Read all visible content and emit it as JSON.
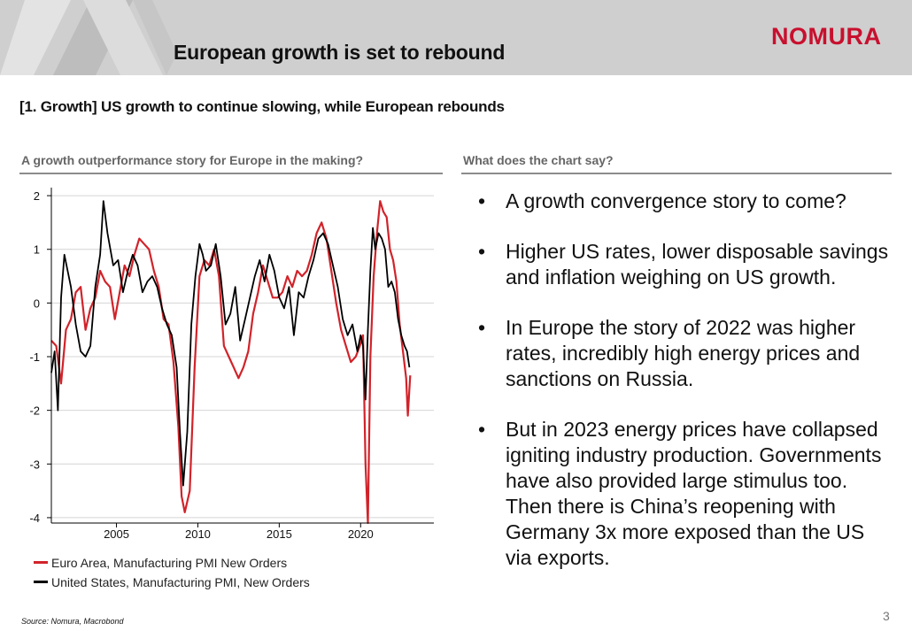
{
  "header": {
    "title": "European growth is set to rebound",
    "logo": "NOMURA"
  },
  "subtitle": "[1. Growth] US growth to continue slowing, while European rebounds",
  "left_heading": "A growth outperformance story for Europe in the making?",
  "right_heading": "What does the chart say?",
  "bullets": [
    "A growth convergence story to come?",
    "Higher US rates, lower disposable savings and inflation weighing on US growth.",
    "In Europe the story of 2022 was higher rates, incredibly high energy prices and sanctions on Russia.",
    "But in 2023 energy prices have collapsed igniting industry production. Governments have also provided large stimulus too. Then there is China’s reopening with Germany 3x more exposed than the US via exports."
  ],
  "source": "Source: Nomura, Macrobond",
  "page_number": "3",
  "colors": {
    "eu": "#d1232a",
    "us": "#000000",
    "accent": "#c8102e"
  },
  "chart_data": {
    "type": "line",
    "title": "A growth outperformance story for Europe in the making?",
    "xlabel": "",
    "ylabel": "",
    "xlim": [
      2001.0,
      2024.5
    ],
    "ylim": [
      -4.1,
      2.15
    ],
    "x_ticks": [
      2005,
      2010,
      2015,
      2020
    ],
    "x_tick_labels": [
      "2005",
      "2010",
      "2015",
      "2020"
    ],
    "y_ticks": [
      2,
      1,
      0,
      -1,
      -2,
      -3,
      -4
    ],
    "y_tick_labels": [
      "2",
      "1",
      "0",
      "-1",
      "-2",
      "-3",
      "-4"
    ],
    "grid": "horizontal",
    "legend_position": "bottom-left",
    "series": [
      {
        "name": "Euro Area, Manufacturing PMI New Orders",
        "color": "#d1232a",
        "x": [
          2001.0,
          2001.3,
          2001.6,
          2001.9,
          2002.2,
          2002.5,
          2002.8,
          2003.1,
          2003.4,
          2003.7,
          2004.0,
          2004.3,
          2004.6,
          2004.9,
          2005.2,
          2005.5,
          2005.8,
          2006.1,
          2006.4,
          2006.7,
          2007.0,
          2007.3,
          2007.6,
          2007.9,
          2008.2,
          2008.5,
          2008.8,
          2009.0,
          2009.2,
          2009.5,
          2009.8,
          2010.1,
          2010.4,
          2010.7,
          2011.0,
          2011.3,
          2011.6,
          2011.9,
          2012.2,
          2012.5,
          2012.8,
          2013.1,
          2013.4,
          2013.7,
          2014.0,
          2014.3,
          2014.6,
          2014.9,
          2015.2,
          2015.5,
          2015.8,
          2016.1,
          2016.4,
          2016.7,
          2017.0,
          2017.3,
          2017.6,
          2017.9,
          2018.2,
          2018.5,
          2018.8,
          2019.1,
          2019.4,
          2019.7,
          2019.95,
          2020.15,
          2020.3,
          2020.45,
          2020.6,
          2020.8,
          2021.0,
          2021.2,
          2021.4,
          2021.6,
          2021.8,
          2022.0,
          2022.2,
          2022.4,
          2022.6,
          2022.8,
          2022.9,
          2023.05
        ],
        "values": [
          -0.7,
          -0.8,
          -1.5,
          -0.5,
          -0.3,
          0.2,
          0.3,
          -0.5,
          -0.1,
          0.1,
          0.6,
          0.4,
          0.3,
          -0.3,
          0.2,
          0.7,
          0.5,
          0.9,
          1.2,
          1.1,
          1.0,
          0.6,
          0.3,
          -0.3,
          -0.4,
          -1.1,
          -2.3,
          -3.6,
          -3.9,
          -3.5,
          -1.2,
          0.5,
          0.8,
          0.7,
          1.0,
          0.5,
          -0.8,
          -1.0,
          -1.2,
          -1.4,
          -1.2,
          -0.9,
          -0.2,
          0.2,
          0.7,
          0.4,
          0.1,
          0.1,
          0.2,
          0.5,
          0.3,
          0.6,
          0.5,
          0.6,
          0.9,
          1.3,
          1.5,
          1.2,
          0.6,
          0.0,
          -0.5,
          -0.8,
          -1.1,
          -1.0,
          -0.8,
          -0.6,
          -3.0,
          -4.1,
          -1.0,
          0.5,
          1.3,
          1.9,
          1.7,
          1.6,
          1.0,
          0.8,
          0.4,
          -0.4,
          -0.9,
          -1.4,
          -2.1,
          -1.35
        ]
      },
      {
        "name": "United States, Manufacturing PMI, New Orders",
        "color": "#000000",
        "x": [
          2001.0,
          2001.2,
          2001.4,
          2001.6,
          2001.8,
          2002.0,
          2002.2,
          2002.5,
          2002.8,
          2003.1,
          2003.4,
          2003.7,
          2004.0,
          2004.2,
          2004.45,
          2004.8,
          2005.1,
          2005.4,
          2005.7,
          2006.0,
          2006.3,
          2006.6,
          2006.9,
          2007.2,
          2007.5,
          2007.8,
          2008.1,
          2008.4,
          2008.7,
          2008.9,
          2009.1,
          2009.35,
          2009.6,
          2009.85,
          2010.1,
          2010.3,
          2010.5,
          2010.8,
          2011.1,
          2011.4,
          2011.7,
          2012.0,
          2012.3,
          2012.6,
          2012.9,
          2013.2,
          2013.5,
          2013.8,
          2014.1,
          2014.4,
          2014.7,
          2015.0,
          2015.3,
          2015.6,
          2015.9,
          2016.2,
          2016.5,
          2016.8,
          2017.1,
          2017.4,
          2017.7,
          2018.0,
          2018.3,
          2018.6,
          2018.9,
          2019.2,
          2019.5,
          2019.8,
          2020.0,
          2020.15,
          2020.3,
          2020.45,
          2020.6,
          2020.75,
          2020.9,
          2021.1,
          2021.3,
          2021.5,
          2021.7,
          2021.9,
          2022.1,
          2022.3,
          2022.5,
          2022.7,
          2022.85,
          2023.0
        ],
        "values": [
          -1.3,
          -0.9,
          -2.0,
          0.1,
          0.9,
          0.6,
          0.3,
          -0.4,
          -0.9,
          -1.0,
          -0.8,
          0.3,
          0.9,
          1.9,
          1.3,
          0.7,
          0.8,
          0.2,
          0.6,
          0.9,
          0.7,
          0.2,
          0.4,
          0.5,
          0.3,
          -0.1,
          -0.4,
          -0.6,
          -1.2,
          -2.4,
          -3.4,
          -2.4,
          -0.4,
          0.5,
          1.1,
          0.9,
          0.6,
          0.7,
          1.1,
          0.5,
          -0.4,
          -0.2,
          0.3,
          -0.7,
          -0.3,
          0.1,
          0.5,
          0.8,
          0.4,
          0.9,
          0.6,
          0.1,
          -0.1,
          0.3,
          -0.6,
          0.2,
          0.1,
          0.5,
          0.8,
          1.2,
          1.3,
          1.1,
          0.7,
          0.3,
          -0.3,
          -0.6,
          -0.4,
          -0.9,
          -0.6,
          -0.8,
          -1.8,
          -0.5,
          0.6,
          1.4,
          1.0,
          1.3,
          1.2,
          1.0,
          0.3,
          0.4,
          0.2,
          -0.3,
          -0.6,
          -0.8,
          -0.9,
          -1.2
        ]
      }
    ]
  }
}
